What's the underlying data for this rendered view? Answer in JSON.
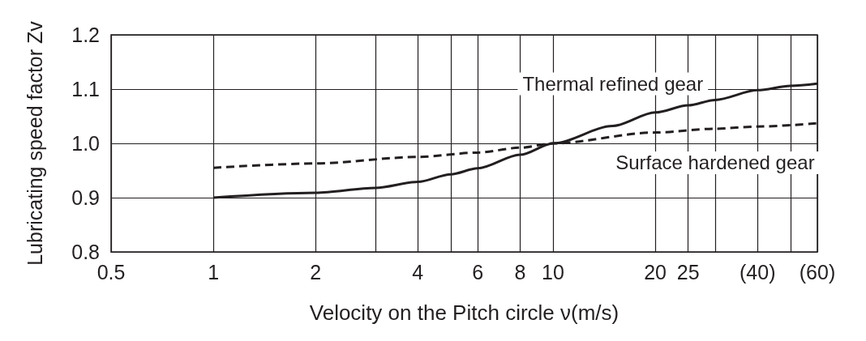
{
  "chart_data": {
    "type": "line",
    "xlabel": "Velocity on the Pitch circle ν(m/s)",
    "ylabel": "Lubricating speed factor Zv",
    "log": "x",
    "xlim": [
      0.5,
      60
    ],
    "ylim": [
      0.8,
      1.2
    ],
    "xticks": [
      0.5,
      1,
      2,
      {
        "value": 3,
        "label": null
      },
      4,
      {
        "value": 5,
        "label": null
      },
      6,
      8,
      10,
      20,
      25,
      {
        "value": 30,
        "label": null
      },
      {
        "value": 40,
        "label": "(40)"
      },
      {
        "value": 50,
        "label": null
      },
      {
        "value": 60,
        "label": "(60)"
      }
    ],
    "yticks": [
      0.8,
      0.9,
      {
        "value": 1.0,
        "label": "1.0"
      },
      1.1,
      1.2
    ],
    "grid": true,
    "legend": false,
    "marker": "none",
    "series": [
      {
        "name": "Thermal refined gear",
        "color": "#231f20",
        "line_style": "solid",
        "x": [
          1,
          2,
          3,
          4,
          5,
          6,
          8,
          10,
          15,
          20,
          25,
          30,
          40,
          50,
          60
        ],
        "values": [
          0.9,
          0.909,
          0.918,
          0.929,
          0.943,
          0.954,
          0.979,
          1.0,
          1.032,
          1.057,
          1.07,
          1.08,
          1.098,
          1.106,
          1.11
        ]
      },
      {
        "name": "Surface hardened gear",
        "color": "#231f20",
        "line_style": "dashed",
        "x": [
          1,
          2,
          4,
          6,
          8,
          10,
          20,
          30,
          40,
          60
        ],
        "values": [
          0.955,
          0.963,
          0.975,
          0.983,
          0.992,
          1.0,
          1.02,
          1.027,
          1.031,
          1.037
        ]
      }
    ]
  }
}
